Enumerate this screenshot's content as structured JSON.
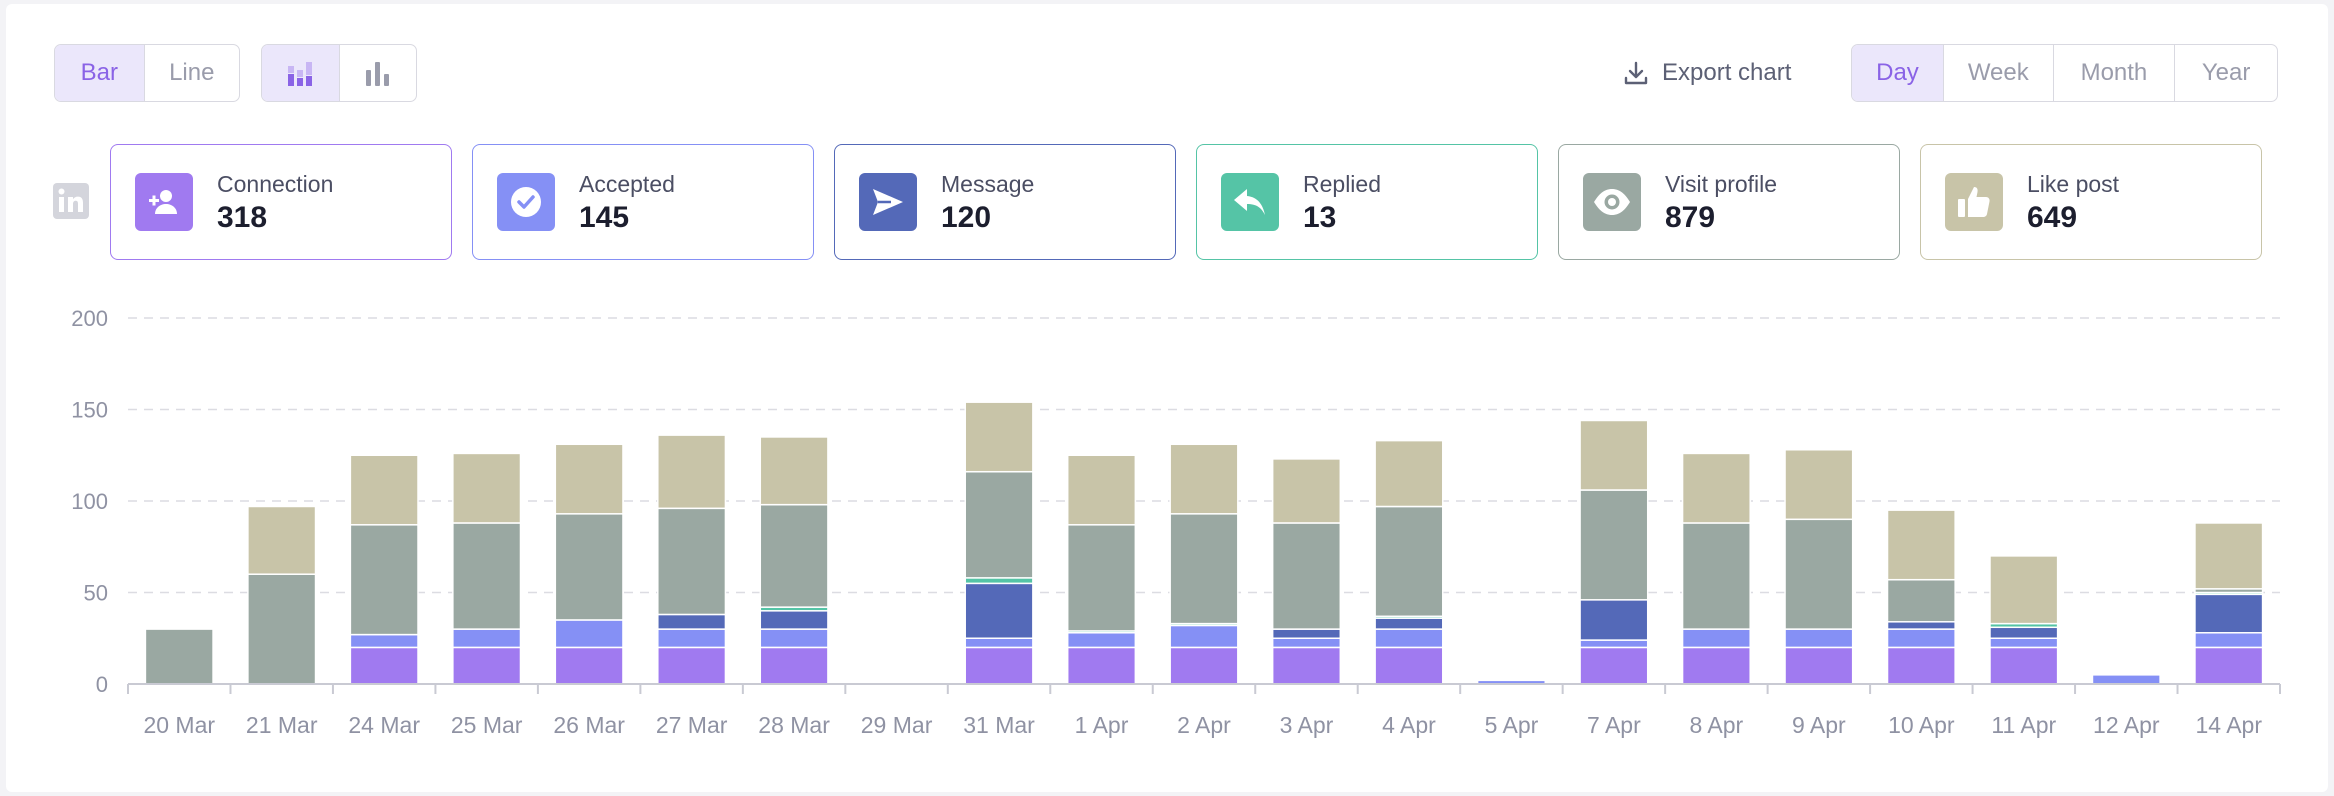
{
  "controls": {
    "chart_type": [
      {
        "label": "Bar",
        "active": true
      },
      {
        "label": "Line",
        "active": false
      }
    ],
    "layout_modes": [
      {
        "icon": "stacked-bars-icon",
        "active": true
      },
      {
        "icon": "grouped-bars-icon",
        "active": false
      }
    ],
    "export_label": "Export chart",
    "periods": [
      {
        "label": "Day",
        "active": true
      },
      {
        "label": "Week",
        "active": false
      },
      {
        "label": "Month",
        "active": false
      },
      {
        "label": "Year",
        "active": false
      }
    ]
  },
  "platform_icon": "linkedin-icon",
  "stats": [
    {
      "label": "Connection",
      "value": "318",
      "color": "#a07af0",
      "icon": "add-user-icon"
    },
    {
      "label": "Accepted",
      "value": "145",
      "color": "#8590f5",
      "icon": "check-circle-icon"
    },
    {
      "label": "Message",
      "value": "120",
      "color": "#5469b8",
      "icon": "send-icon"
    },
    {
      "label": "Replied",
      "value": "13",
      "color": "#55c4a6",
      "icon": "reply-icon"
    },
    {
      "label": "Visit profile",
      "value": "879",
      "color": "#9aa8a2",
      "icon": "eye-icon"
    },
    {
      "label": "Like post",
      "value": "649",
      "color": "#c8c4a8",
      "icon": "thumbs-up-icon"
    }
  ],
  "chart_data": {
    "type": "bar",
    "stacked": true,
    "categories": [
      "20 Mar",
      "21 Mar",
      "24 Mar",
      "25 Mar",
      "26 Mar",
      "27 Mar",
      "28 Mar",
      "29 Mar",
      "31 Mar",
      "1 Apr",
      "2 Apr",
      "3 Apr",
      "4 Apr",
      "5 Apr",
      "7 Apr",
      "8 Apr",
      "9 Apr",
      "10 Apr",
      "11 Apr",
      "12 Apr",
      "14 Apr"
    ],
    "yticks": [
      "0",
      "50",
      "100",
      "150",
      "200"
    ],
    "ylim": [
      0,
      200
    ],
    "grid": true,
    "series": [
      {
        "name": "Connection",
        "color": "#a07af0",
        "values": [
          0,
          0,
          20,
          20,
          20,
          20,
          20,
          0,
          20,
          20,
          20,
          20,
          20,
          0,
          20,
          20,
          20,
          20,
          20,
          0,
          20
        ]
      },
      {
        "name": "Accepted",
        "color": "#8590f5",
        "values": [
          0,
          0,
          7,
          10,
          15,
          10,
          10,
          0,
          5,
          8,
          12,
          5,
          10,
          2,
          4,
          10,
          10,
          10,
          5,
          5,
          8
        ]
      },
      {
        "name": "Message",
        "color": "#5469b8",
        "values": [
          0,
          0,
          0,
          0,
          0,
          8,
          10,
          0,
          30,
          0,
          0,
          5,
          6,
          0,
          22,
          0,
          0,
          4,
          6,
          0,
          21
        ]
      },
      {
        "name": "Replied",
        "color": "#55c4a6",
        "values": [
          0,
          0,
          0,
          0,
          0,
          0,
          2,
          0,
          3,
          1,
          1,
          0,
          1,
          0,
          0,
          0,
          0,
          0,
          2,
          0,
          1
        ]
      },
      {
        "name": "Visit profile",
        "color": "#9aa8a2",
        "values": [
          30,
          60,
          60,
          58,
          58,
          58,
          56,
          0,
          58,
          58,
          60,
          58,
          60,
          0,
          60,
          58,
          60,
          23,
          0,
          0,
          2
        ]
      },
      {
        "name": "Like post",
        "color": "#c8c4a8",
        "values": [
          0,
          37,
          38,
          38,
          38,
          40,
          37,
          0,
          38,
          38,
          38,
          35,
          36,
          0,
          38,
          38,
          38,
          38,
          37,
          0,
          36
        ]
      }
    ]
  }
}
